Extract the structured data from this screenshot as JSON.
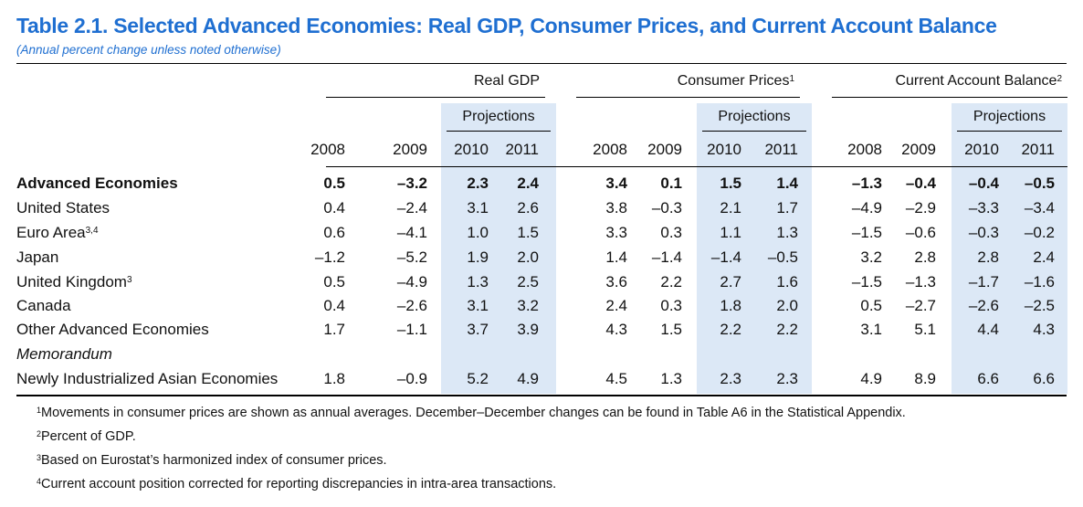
{
  "title": "Table 2.1.  Selected Advanced Economies: Real GDP, Consumer Prices, and Current Account Balance",
  "subtitle": "(Annual percent change unless noted otherwise)",
  "groups": [
    {
      "label": "Real GDP",
      "sup": ""
    },
    {
      "label": "Consumer Prices",
      "sup": "1"
    },
    {
      "label": "Current Account Balance",
      "sup": "2"
    }
  ],
  "projections_label": "Projections",
  "years": [
    "2008",
    "2009",
    "2010",
    "2011"
  ],
  "rows": [
    {
      "label": "Advanced Economies",
      "sup": "",
      "bold": true,
      "italic": false,
      "values": [
        "0.5",
        "–3.2",
        "2.3",
        "2.4",
        "3.4",
        "0.1",
        "1.5",
        "1.4",
        "–1.3",
        "–0.4",
        "–0.4",
        "–0.5"
      ]
    },
    {
      "label": "United States",
      "sup": "",
      "bold": false,
      "italic": false,
      "values": [
        "0.4",
        "–2.4",
        "3.1",
        "2.6",
        "3.8",
        "–0.3",
        "2.1",
        "1.7",
        "–4.9",
        "–2.9",
        "–3.3",
        "–3.4"
      ]
    },
    {
      "label": "Euro Area",
      "sup": "3,4",
      "bold": false,
      "italic": false,
      "values": [
        "0.6",
        "–4.1",
        "1.0",
        "1.5",
        "3.3",
        "0.3",
        "1.1",
        "1.3",
        "–1.5",
        "–0.6",
        "–0.3",
        "–0.2"
      ]
    },
    {
      "label": "Japan",
      "sup": "",
      "bold": false,
      "italic": false,
      "values": [
        "–1.2",
        "–5.2",
        "1.9",
        "2.0",
        "1.4",
        "–1.4",
        "–1.4",
        "–0.5",
        "3.2",
        "2.8",
        "2.8",
        "2.4"
      ]
    },
    {
      "label": "United Kingdom",
      "sup": "3",
      "bold": false,
      "italic": false,
      "values": [
        "0.5",
        "–4.9",
        "1.3",
        "2.5",
        "3.6",
        "2.2",
        "2.7",
        "1.6",
        "–1.5",
        "–1.3",
        "–1.7",
        "–1.6"
      ]
    },
    {
      "label": "Canada",
      "sup": "",
      "bold": false,
      "italic": false,
      "values": [
        "0.4",
        "–2.6",
        "3.1",
        "3.2",
        "2.4",
        "0.3",
        "1.8",
        "2.0",
        "0.5",
        "–2.7",
        "–2.6",
        "–2.5"
      ]
    },
    {
      "label": "Other Advanced Economies",
      "sup": "",
      "bold": false,
      "italic": false,
      "values": [
        "1.7",
        "–1.1",
        "3.7",
        "3.9",
        "4.3",
        "1.5",
        "2.2",
        "2.2",
        "3.1",
        "5.1",
        "4.4",
        "4.3"
      ]
    },
    {
      "label": "Memorandum",
      "sup": "",
      "bold": false,
      "italic": true,
      "values": []
    },
    {
      "label": "Newly Industrialized Asian Economies",
      "sup": "",
      "bold": false,
      "italic": false,
      "values": [
        "1.8",
        "–0.9",
        "5.2",
        "4.9",
        "4.5",
        "1.3",
        "2.3",
        "2.3",
        "4.9",
        "8.9",
        "6.6",
        "6.6"
      ]
    }
  ],
  "footnotes": [
    {
      "num": "1",
      "text": "Movements in consumer prices are shown as annual averages. December–December changes can be found in Table A6 in the Statistical Appendix."
    },
    {
      "num": "2",
      "text": "Percent of GDP."
    },
    {
      "num": "3",
      "text": "Based on Eurostat’s harmonized index of consumer prices."
    },
    {
      "num": "4",
      "text": "Current account position corrected for reporting discrepancies in intra-area transactions."
    }
  ]
}
